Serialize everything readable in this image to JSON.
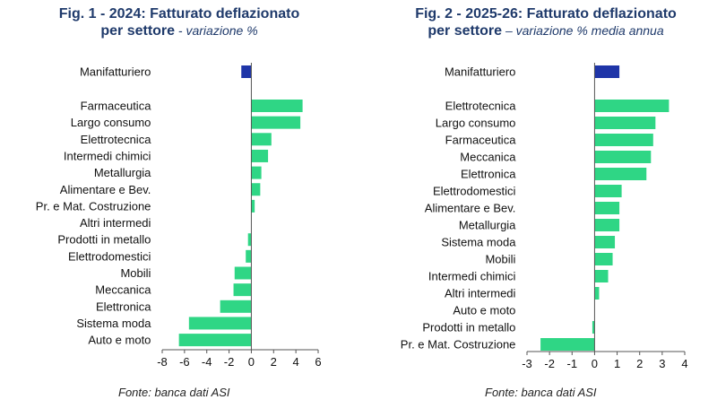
{
  "chart_data": [
    {
      "type": "bar",
      "orientation": "horizontal",
      "title": "Fig. 1 - 2024: Fatturato deflazionato",
      "title_line2": "per settore",
      "subtitle": " - variazione %",
      "categories": [
        "Manifatturiero",
        "Farmaceutica",
        "Largo consumo",
        "Elettrotecnica",
        "Intermedi chimici",
        "Metallurgia",
        "Alimentare e Bev.",
        "Pr. e Mat. Costruzione",
        "Altri intermedi",
        "Prodotti in metallo",
        "Elettrodomestici",
        "Mobili",
        "Meccanica",
        "Elettronica",
        "Sistema moda",
        "Auto e moto"
      ],
      "values": [
        -0.9,
        4.6,
        4.4,
        1.8,
        1.5,
        0.9,
        0.8,
        0.3,
        0.0,
        -0.3,
        -0.5,
        -1.5,
        -1.6,
        -2.8,
        -5.6,
        -6.5
      ],
      "highlight_category": "Manifatturiero",
      "xlim": [
        -8,
        6
      ],
      "xticks": [
        "-8",
        "-6",
        "-4",
        "-2",
        "0",
        "2",
        "4",
        "6"
      ],
      "xlabel": "",
      "ylabel": "",
      "grid": false,
      "source": "Fonte: banca dati ASI"
    },
    {
      "type": "bar",
      "orientation": "horizontal",
      "title": "Fig. 2 - 2025-26: Fatturato deflazionato",
      "title_line2": "per settore",
      "subtitle": " – variazione % media annua",
      "categories": [
        "Manifatturiero",
        "Elettrotecnica",
        "Largo consumo",
        "Farmaceutica",
        "Meccanica",
        "Elettronica",
        "Elettrodomestici",
        "Alimentare e Bev.",
        "Metallurgia",
        "Sistema moda",
        "Mobili",
        "Intermedi chimici",
        "Altri intermedi",
        "Auto e moto",
        "Prodotti in metallo",
        "Pr. e Mat. Costruzione"
      ],
      "values": [
        1.1,
        3.3,
        2.7,
        2.6,
        2.5,
        2.3,
        1.2,
        1.1,
        1.1,
        0.9,
        0.8,
        0.6,
        0.2,
        0.0,
        -0.1,
        -2.4
      ],
      "highlight_category": "Manifatturiero",
      "xlim": [
        -3,
        4
      ],
      "xticks": [
        "-3",
        "-2",
        "-1",
        "0",
        "1",
        "2",
        "3",
        "4"
      ],
      "xlabel": "",
      "ylabel": "",
      "grid": false,
      "source": "Fonte: banca dati ASI"
    }
  ],
  "colors": {
    "highlight_bar": "#1f35a8",
    "bar": "#2fd685",
    "title": "#1f3a6b",
    "axis": "#555555",
    "text": "#111111"
  }
}
